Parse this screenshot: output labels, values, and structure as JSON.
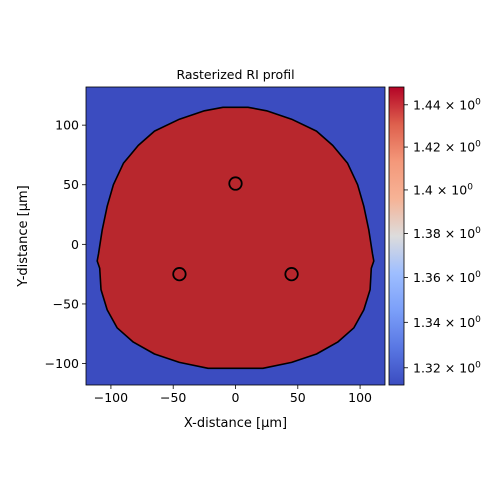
{
  "chart_data": {
    "type": "heatmap",
    "title": "Rasterized RI profil",
    "xlabel": "X-distance [μm]",
    "ylabel": "Y-distance [μm]",
    "xlim": [
      -120,
      120
    ],
    "ylim": [
      -118,
      132
    ],
    "x_ticks": [
      {
        "value": -100,
        "label": "−100"
      },
      {
        "value": -50,
        "label": "−50"
      },
      {
        "value": 0,
        "label": "0"
      },
      {
        "value": 50,
        "label": "50"
      },
      {
        "value": 100,
        "label": "100"
      }
    ],
    "y_ticks": [
      {
        "value": -100,
        "label": "−100"
      },
      {
        "value": -50,
        "label": "−50"
      },
      {
        "value": 0,
        "label": "0"
      },
      {
        "value": 50,
        "label": "50"
      },
      {
        "value": 100,
        "label": "100"
      }
    ],
    "colorbar": {
      "scale": "log",
      "min": 1.3125,
      "max": 1.4485,
      "colormap": "coolwarm",
      "ticks": [
        {
          "value": 1.32,
          "mantissa": "1.32",
          "base": "10",
          "exponent": "0"
        },
        {
          "value": 1.34,
          "mantissa": "1.34",
          "base": "10",
          "exponent": "0"
        },
        {
          "value": 1.36,
          "mantissa": "1.36",
          "base": "10",
          "exponent": "0"
        },
        {
          "value": 1.38,
          "mantissa": "1.38",
          "base": "10",
          "exponent": "0"
        },
        {
          "value": 1.4,
          "mantissa": "1.4",
          "base": "10",
          "exponent": "0"
        },
        {
          "value": 1.42,
          "mantissa": "1.42",
          "base": "10",
          "exponent": "0"
        },
        {
          "value": 1.44,
          "mantissa": "1.44",
          "base": "10",
          "exponent": "0"
        }
      ]
    },
    "background_value": 1.3125,
    "regions": [
      {
        "name": "cladding",
        "value": 1.4485,
        "boundary": [
          [
            -10,
            115
          ],
          [
            10,
            115
          ],
          [
            25,
            112
          ],
          [
            45,
            105
          ],
          [
            65,
            95
          ],
          [
            78,
            83
          ],
          [
            90,
            68
          ],
          [
            98,
            50
          ],
          [
            103,
            32
          ],
          [
            107,
            12
          ],
          [
            110,
            -8
          ],
          [
            111,
            -14
          ],
          [
            109,
            -20
          ],
          [
            108,
            -38
          ],
          [
            103,
            -55
          ],
          [
            95,
            -70
          ],
          [
            82,
            -82
          ],
          [
            65,
            -92
          ],
          [
            45,
            -99
          ],
          [
            22,
            -104
          ],
          [
            -22,
            -104
          ],
          [
            -45,
            -99
          ],
          [
            -65,
            -92
          ],
          [
            -82,
            -82
          ],
          [
            -95,
            -70
          ],
          [
            -103,
            -55
          ],
          [
            -108,
            -38
          ],
          [
            -109,
            -20
          ],
          [
            -111,
            -14
          ],
          [
            -110,
            -8
          ],
          [
            -107,
            12
          ],
          [
            -103,
            32
          ],
          [
            -98,
            50
          ],
          [
            -90,
            68
          ],
          [
            -78,
            83
          ],
          [
            -65,
            95
          ],
          [
            -45,
            105
          ],
          [
            -25,
            112
          ]
        ]
      },
      {
        "name": "core-top",
        "value": 1.4485,
        "center": [
          0,
          51
        ],
        "radius": 5
      },
      {
        "name": "core-left",
        "value": 1.4485,
        "center": [
          -45,
          -25
        ],
        "radius": 5
      },
      {
        "name": "core-right",
        "value": 1.4485,
        "center": [
          45,
          -25
        ],
        "radius": 5
      }
    ],
    "contour_color": "#000000",
    "colors": {
      "background": "#3b4cc0",
      "region": "#b8272d"
    }
  }
}
